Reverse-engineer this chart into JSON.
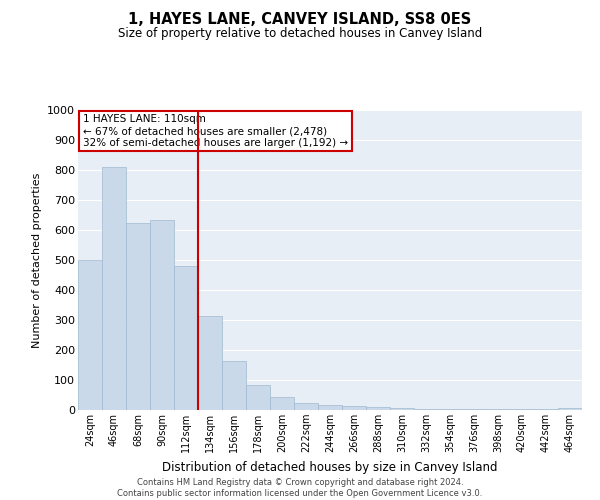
{
  "title": "1, HAYES LANE, CANVEY ISLAND, SS8 0ES",
  "subtitle": "Size of property relative to detached houses in Canvey Island",
  "xlabel": "Distribution of detached houses by size in Canvey Island",
  "ylabel": "Number of detached properties",
  "categories": [
    "24sqm",
    "46sqm",
    "68sqm",
    "90sqm",
    "112sqm",
    "134sqm",
    "156sqm",
    "178sqm",
    "200sqm",
    "222sqm",
    "244sqm",
    "266sqm",
    "288sqm",
    "310sqm",
    "332sqm",
    "354sqm",
    "376sqm",
    "398sqm",
    "420sqm",
    "442sqm",
    "464sqm"
  ],
  "values": [
    500,
    810,
    625,
    635,
    480,
    312,
    165,
    82,
    45,
    25,
    18,
    12,
    10,
    8,
    5,
    5,
    4,
    4,
    5,
    3,
    8
  ],
  "bar_color": "#c9d9ea",
  "bar_edge_color": "#a0b8d0",
  "vline_index": 4,
  "vline_color": "#cc0000",
  "ylim": [
    0,
    1000
  ],
  "yticks": [
    0,
    100,
    200,
    300,
    400,
    500,
    600,
    700,
    800,
    900,
    1000
  ],
  "annotation_title": "1 HAYES LANE: 110sqm",
  "annotation_line1": "← 67% of detached houses are smaller (2,478)",
  "annotation_line2": "32% of semi-detached houses are larger (1,192) →",
  "annotation_box_color": "#cc0000",
  "bg_color": "#e8eef5",
  "grid_color": "#ffffff",
  "fig_bg_color": "#ffffff",
  "footer_line1": "Contains HM Land Registry data © Crown copyright and database right 2024.",
  "footer_line2": "Contains public sector information licensed under the Open Government Licence v3.0."
}
